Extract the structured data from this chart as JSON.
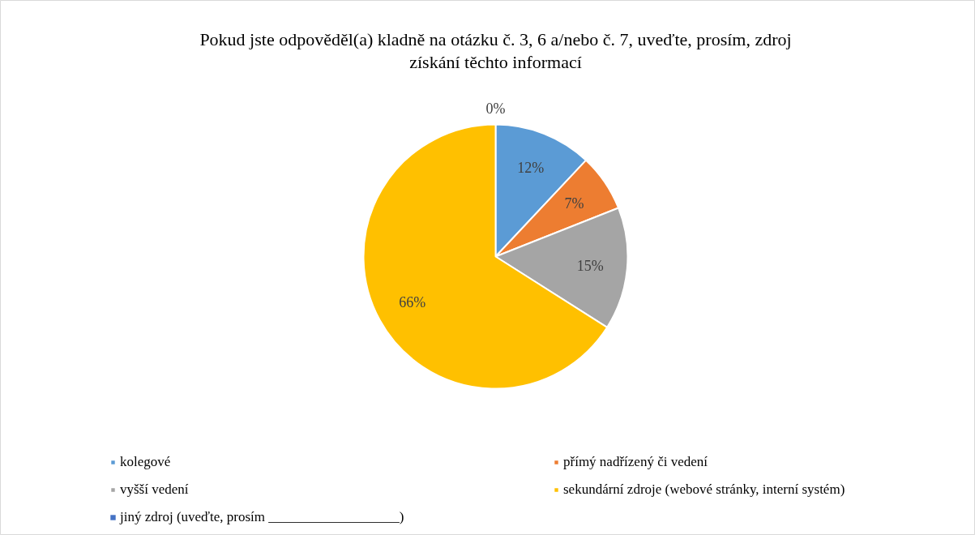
{
  "chart_data": {
    "type": "pie",
    "title": "Pokud jste odpověděl(a) kladně na otázku č. 3, 6 a/nebo č. 7, uveďte, prosím, zdroj získání těchto informací",
    "categories": [
      "kolegové",
      "přímý nadřízený či vedení",
      "vyšší vedení",
      "sekundární zdroje (webové stránky, interní systém)",
      "jiný zdroj (uveďte, prosím ___________________)"
    ],
    "values": [
      12,
      7,
      15,
      66,
      0
    ],
    "colors": [
      "#5b9bd5",
      "#ed7d31",
      "#a5a5a5",
      "#ffc000",
      "#4472c4"
    ],
    "value_labels": [
      "12%",
      "7%",
      "15%",
      "66%",
      "0%"
    ],
    "legend": "bottom"
  }
}
